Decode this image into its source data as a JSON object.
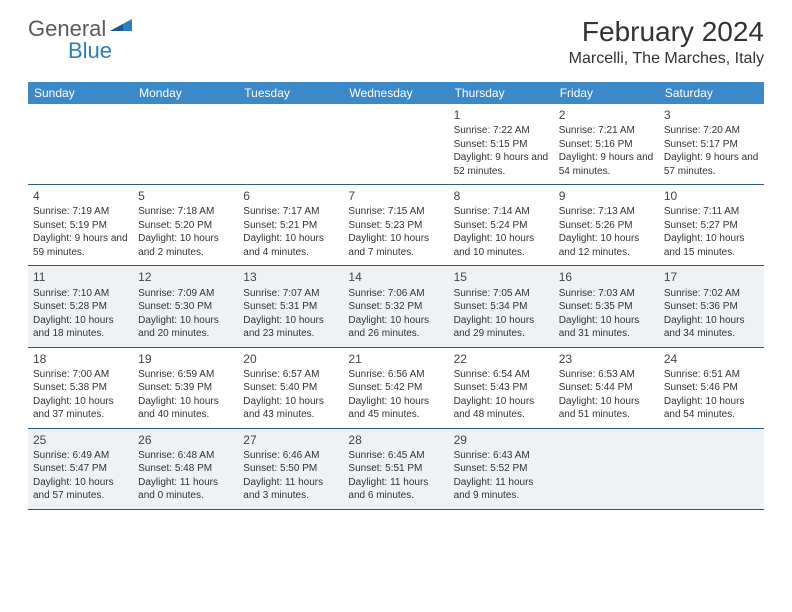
{
  "logo": {
    "general": "General",
    "blue": "Blue"
  },
  "title": "February 2024",
  "location": "Marcelli, The Marches, Italy",
  "colors": {
    "header_bg": "#3b89c9",
    "header_text": "#ffffff",
    "row_border": "#2a5a8a",
    "shaded_bg": "#eef2f5",
    "logo_gray": "#5a5a5a",
    "logo_blue": "#2a7fbf"
  },
  "dayHeaders": [
    "Sunday",
    "Monday",
    "Tuesday",
    "Wednesday",
    "Thursday",
    "Friday",
    "Saturday"
  ],
  "weeks": [
    [
      {
        "blank": true
      },
      {
        "blank": true
      },
      {
        "blank": true
      },
      {
        "blank": true
      },
      {
        "num": "1",
        "sunrise": "Sunrise: 7:22 AM",
        "sunset": "Sunset: 5:15 PM",
        "daylight": "Daylight: 9 hours and 52 minutes."
      },
      {
        "num": "2",
        "sunrise": "Sunrise: 7:21 AM",
        "sunset": "Sunset: 5:16 PM",
        "daylight": "Daylight: 9 hours and 54 minutes."
      },
      {
        "num": "3",
        "sunrise": "Sunrise: 7:20 AM",
        "sunset": "Sunset: 5:17 PM",
        "daylight": "Daylight: 9 hours and 57 minutes."
      }
    ],
    [
      {
        "num": "4",
        "sunrise": "Sunrise: 7:19 AM",
        "sunset": "Sunset: 5:19 PM",
        "daylight": "Daylight: 9 hours and 59 minutes."
      },
      {
        "num": "5",
        "sunrise": "Sunrise: 7:18 AM",
        "sunset": "Sunset: 5:20 PM",
        "daylight": "Daylight: 10 hours and 2 minutes."
      },
      {
        "num": "6",
        "sunrise": "Sunrise: 7:17 AM",
        "sunset": "Sunset: 5:21 PM",
        "daylight": "Daylight: 10 hours and 4 minutes."
      },
      {
        "num": "7",
        "sunrise": "Sunrise: 7:15 AM",
        "sunset": "Sunset: 5:23 PM",
        "daylight": "Daylight: 10 hours and 7 minutes."
      },
      {
        "num": "8",
        "sunrise": "Sunrise: 7:14 AM",
        "sunset": "Sunset: 5:24 PM",
        "daylight": "Daylight: 10 hours and 10 minutes."
      },
      {
        "num": "9",
        "sunrise": "Sunrise: 7:13 AM",
        "sunset": "Sunset: 5:26 PM",
        "daylight": "Daylight: 10 hours and 12 minutes."
      },
      {
        "num": "10",
        "sunrise": "Sunrise: 7:11 AM",
        "sunset": "Sunset: 5:27 PM",
        "daylight": "Daylight: 10 hours and 15 minutes."
      }
    ],
    [
      {
        "shaded": true,
        "num": "11",
        "sunrise": "Sunrise: 7:10 AM",
        "sunset": "Sunset: 5:28 PM",
        "daylight": "Daylight: 10 hours and 18 minutes."
      },
      {
        "shaded": true,
        "num": "12",
        "sunrise": "Sunrise: 7:09 AM",
        "sunset": "Sunset: 5:30 PM",
        "daylight": "Daylight: 10 hours and 20 minutes."
      },
      {
        "shaded": true,
        "num": "13",
        "sunrise": "Sunrise: 7:07 AM",
        "sunset": "Sunset: 5:31 PM",
        "daylight": "Daylight: 10 hours and 23 minutes."
      },
      {
        "shaded": true,
        "num": "14",
        "sunrise": "Sunrise: 7:06 AM",
        "sunset": "Sunset: 5:32 PM",
        "daylight": "Daylight: 10 hours and 26 minutes."
      },
      {
        "shaded": true,
        "num": "15",
        "sunrise": "Sunrise: 7:05 AM",
        "sunset": "Sunset: 5:34 PM",
        "daylight": "Daylight: 10 hours and 29 minutes."
      },
      {
        "shaded": true,
        "num": "16",
        "sunrise": "Sunrise: 7:03 AM",
        "sunset": "Sunset: 5:35 PM",
        "daylight": "Daylight: 10 hours and 31 minutes."
      },
      {
        "shaded": true,
        "num": "17",
        "sunrise": "Sunrise: 7:02 AM",
        "sunset": "Sunset: 5:36 PM",
        "daylight": "Daylight: 10 hours and 34 minutes."
      }
    ],
    [
      {
        "num": "18",
        "sunrise": "Sunrise: 7:00 AM",
        "sunset": "Sunset: 5:38 PM",
        "daylight": "Daylight: 10 hours and 37 minutes."
      },
      {
        "num": "19",
        "sunrise": "Sunrise: 6:59 AM",
        "sunset": "Sunset: 5:39 PM",
        "daylight": "Daylight: 10 hours and 40 minutes."
      },
      {
        "num": "20",
        "sunrise": "Sunrise: 6:57 AM",
        "sunset": "Sunset: 5:40 PM",
        "daylight": "Daylight: 10 hours and 43 minutes."
      },
      {
        "num": "21",
        "sunrise": "Sunrise: 6:56 AM",
        "sunset": "Sunset: 5:42 PM",
        "daylight": "Daylight: 10 hours and 45 minutes."
      },
      {
        "num": "22",
        "sunrise": "Sunrise: 6:54 AM",
        "sunset": "Sunset: 5:43 PM",
        "daylight": "Daylight: 10 hours and 48 minutes."
      },
      {
        "num": "23",
        "sunrise": "Sunrise: 6:53 AM",
        "sunset": "Sunset: 5:44 PM",
        "daylight": "Daylight: 10 hours and 51 minutes."
      },
      {
        "num": "24",
        "sunrise": "Sunrise: 6:51 AM",
        "sunset": "Sunset: 5:46 PM",
        "daylight": "Daylight: 10 hours and 54 minutes."
      }
    ],
    [
      {
        "shaded": true,
        "num": "25",
        "sunrise": "Sunrise: 6:49 AM",
        "sunset": "Sunset: 5:47 PM",
        "daylight": "Daylight: 10 hours and 57 minutes."
      },
      {
        "shaded": true,
        "num": "26",
        "sunrise": "Sunrise: 6:48 AM",
        "sunset": "Sunset: 5:48 PM",
        "daylight": "Daylight: 11 hours and 0 minutes."
      },
      {
        "shaded": true,
        "num": "27",
        "sunrise": "Sunrise: 6:46 AM",
        "sunset": "Sunset: 5:50 PM",
        "daylight": "Daylight: 11 hours and 3 minutes."
      },
      {
        "shaded": true,
        "num": "28",
        "sunrise": "Sunrise: 6:45 AM",
        "sunset": "Sunset: 5:51 PM",
        "daylight": "Daylight: 11 hours and 6 minutes."
      },
      {
        "shaded": true,
        "num": "29",
        "sunrise": "Sunrise: 6:43 AM",
        "sunset": "Sunset: 5:52 PM",
        "daylight": "Daylight: 11 hours and 9 minutes."
      },
      {
        "shaded": true,
        "blank": true
      },
      {
        "shaded": true,
        "blank": true
      }
    ]
  ]
}
